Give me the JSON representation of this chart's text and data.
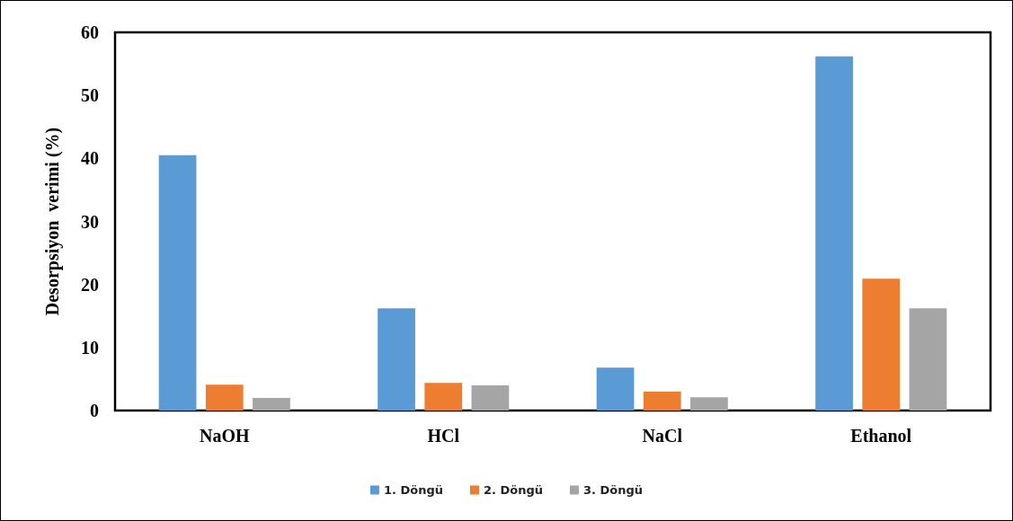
{
  "chart_data": {
    "type": "bar",
    "ylabel": "Desorpsiyon  verimi (%)",
    "categories": [
      "NaOH",
      "HCl",
      "NaCl",
      "Ethanol"
    ],
    "series": [
      {
        "name": "1. Döngü",
        "color": "#5b9bd5",
        "values": [
          40.5,
          16.2,
          6.8,
          56.2
        ]
      },
      {
        "name": "2. Döngü",
        "color": "#ed7d31",
        "values": [
          4.1,
          4.4,
          3.0,
          20.9
        ]
      },
      {
        "name": "3. Döngü",
        "color": "#a5a5a5",
        "values": [
          2.0,
          4.0,
          2.1,
          16.2
        ]
      }
    ],
    "ylim": [
      0,
      60
    ],
    "yticks": [
      0,
      10,
      20,
      30,
      40,
      50,
      60
    ],
    "grid": false,
    "legend": "bottom"
  }
}
